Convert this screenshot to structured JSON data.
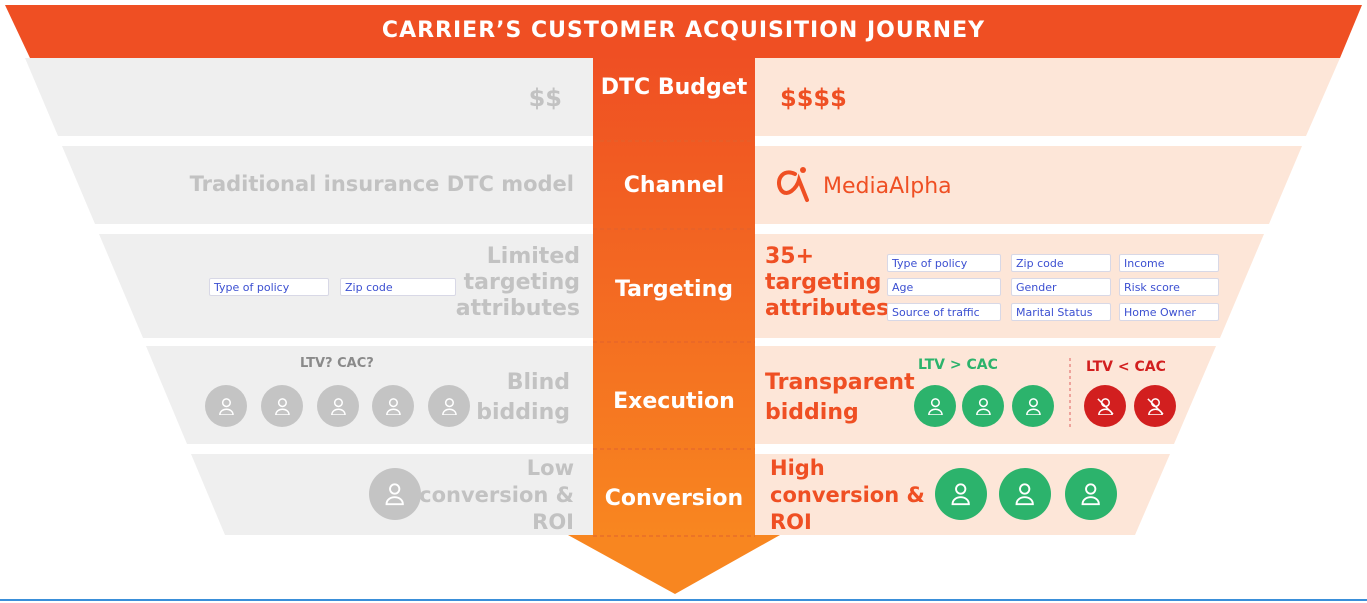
{
  "title": "CARRIER’S CUSTOMER ACQUISITION JOURNEY",
  "colors": {
    "header": "#ef4f23",
    "center_top": "#ef4f23",
    "center_bottom": "#f88620",
    "left_bg": "#efefef",
    "right_bg": "#fde6d8",
    "green": "#2cb36c",
    "red": "#d21f1f",
    "chip_text": "#3b4fd1"
  },
  "rows": [
    {
      "center": "DTC Budget",
      "left": "$$",
      "right": "$$$$"
    },
    {
      "center": "Channel",
      "left": "Traditional insurance DTC model",
      "right": "MediaAlpha"
    },
    {
      "center": "Targeting",
      "left": "Limited targeting attributes",
      "left_chips": [
        "Type of policy",
        "Zip code"
      ],
      "right": "35+ targeting attributes",
      "right_chips": [
        "Type of policy",
        "Zip code",
        "Income",
        "Age",
        "Gender",
        "Risk score",
        "Source of traffic",
        "Marital Status",
        "Home Owner"
      ]
    },
    {
      "center": "Execution",
      "left": "Blind bidding",
      "left_note": "LTV? CAC?",
      "right": "Transparent bidding",
      "good_label": "LTV > CAC",
      "bad_label": "LTV < CAC"
    },
    {
      "center": "Conversion",
      "left": "Low conversion & ROI",
      "right": "High conversion & ROI"
    }
  ]
}
